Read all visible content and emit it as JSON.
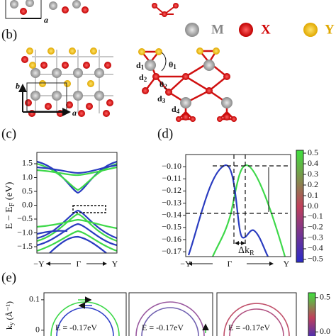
{
  "panel_a": {
    "axis_label": "a"
  },
  "panel_b": {
    "label": "(b)",
    "legend": [
      "M",
      "X",
      "Y"
    ],
    "lattice_labels": [
      "b",
      "a"
    ],
    "bond_labels": [
      {
        "main": "d",
        "sub": "1"
      },
      {
        "main": "d",
        "sub": "2"
      },
      {
        "main": "d",
        "sub": "3"
      },
      {
        "main": "d",
        "sub": "4"
      }
    ],
    "angle_labels": [
      {
        "main": "θ",
        "sub": "1"
      },
      {
        "main": "θ",
        "sub": "2"
      }
    ]
  },
  "panel_c": {
    "label": "(c)",
    "y_label": {
      "main": "E − E",
      "sub": "F",
      "unit": " (eV)"
    },
    "ylim": [
      -1.73,
      1.91
    ],
    "yticks": [
      1.5,
      {
        "value": 1,
        "label": "1.0"
      },
      0.5,
      {
        "value": 0,
        "label": "0.0"
      },
      {
        "value": -0.5,
        "label": "−0.5"
      },
      {
        "value": -1,
        "label": "−1.0"
      },
      {
        "value": -1.5,
        "label": "−1.5"
      }
    ],
    "x_labels": [
      "−Y",
      "Γ",
      "Y"
    ]
  },
  "panel_d": {
    "label": "(d)",
    "ylim": [
      -0.174,
      -0.09
    ],
    "yticks": [
      {
        "value": -0.1,
        "label": "−0.10"
      },
      {
        "value": -0.11,
        "label": "−0.11"
      },
      {
        "value": -0.12,
        "label": "−0.12"
      },
      {
        "value": -0.13,
        "label": "−0.13"
      },
      {
        "value": -0.14,
        "label": "−0.14"
      },
      {
        "value": -0.15,
        "label": "−0.15"
      },
      {
        "value": -0.16,
        "label": "−0.16"
      },
      {
        "value": -0.17,
        "label": "−0.17"
      }
    ],
    "x_labels": [
      "−Y",
      "Γ",
      "Y"
    ],
    "annotation": {
      "main": "Δk",
      "sub": "R"
    },
    "colorbar": {
      "lim": [
        -0.527,
        0.527
      ],
      "ticks": [
        0.5,
        0.4,
        0.3,
        0.2,
        0.1,
        {
          "value": 0,
          "label": "0.0"
        },
        {
          "value": -0.1,
          "label": "−0.1"
        },
        {
          "value": -0.2,
          "label": "−0.2"
        },
        {
          "value": -0.3,
          "label": "−0.3"
        },
        {
          "value": -0.4,
          "label": "−0.4"
        },
        {
          "value": -0.5,
          "label": "−0.5"
        }
      ]
    }
  },
  "panel_e": {
    "label": "(e)",
    "y_label": {
      "main": "k",
      "sub": "y",
      "unit": " (Å⁻¹)"
    },
    "ylim": [
      -0.019,
      0.123
    ],
    "yticks": [
      0.1,
      0
    ],
    "subpanels": [
      "E  = -0.17eV",
      "E  = -0.17eV",
      "E  = -0.17eV"
    ],
    "colorbar": {
      "lim": [
        -0.06,
        0.57
      ],
      "ticks": [
        0.5,
        {
          "value": 0,
          "label": "0.0"
        }
      ]
    }
  }
}
